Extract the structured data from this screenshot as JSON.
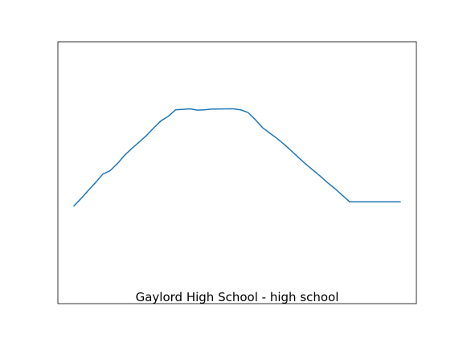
{
  "chart_data": {
    "type": "line",
    "label": "Gaylord High School - high school",
    "xlim": [
      0,
      45
    ],
    "ylim": [
      0,
      1
    ],
    "grid": false,
    "ticks_visible": false,
    "legend": "none",
    "colors": {
      "series": "#1f77b4",
      "frame": "#000000",
      "background": "#ffffff"
    },
    "series": [
      {
        "x": [
          0,
          1,
          2,
          3,
          4,
          5,
          6,
          7,
          8,
          9,
          10,
          11,
          12,
          13,
          14,
          15,
          16,
          17,
          18,
          19,
          20,
          21,
          22,
          23,
          24,
          25,
          26,
          27,
          28,
          29,
          30,
          31,
          32,
          33,
          34,
          35,
          36,
          37,
          38,
          39,
          40,
          41,
          42,
          43,
          44,
          45
        ],
        "y": [
          0.373,
          0.402,
          0.433,
          0.463,
          0.495,
          0.508,
          0.535,
          0.567,
          0.593,
          0.617,
          0.642,
          0.671,
          0.698,
          0.715,
          0.74,
          0.742,
          0.744,
          0.739,
          0.74,
          0.743,
          0.743,
          0.744,
          0.744,
          0.74,
          0.73,
          0.703,
          0.672,
          0.651,
          0.631,
          0.608,
          0.583,
          0.557,
          0.532,
          0.509,
          0.486,
          0.461,
          0.439,
          0.414,
          0.389,
          0.389,
          0.389,
          0.389,
          0.389,
          0.389,
          0.389,
          0.389
        ]
      }
    ]
  }
}
